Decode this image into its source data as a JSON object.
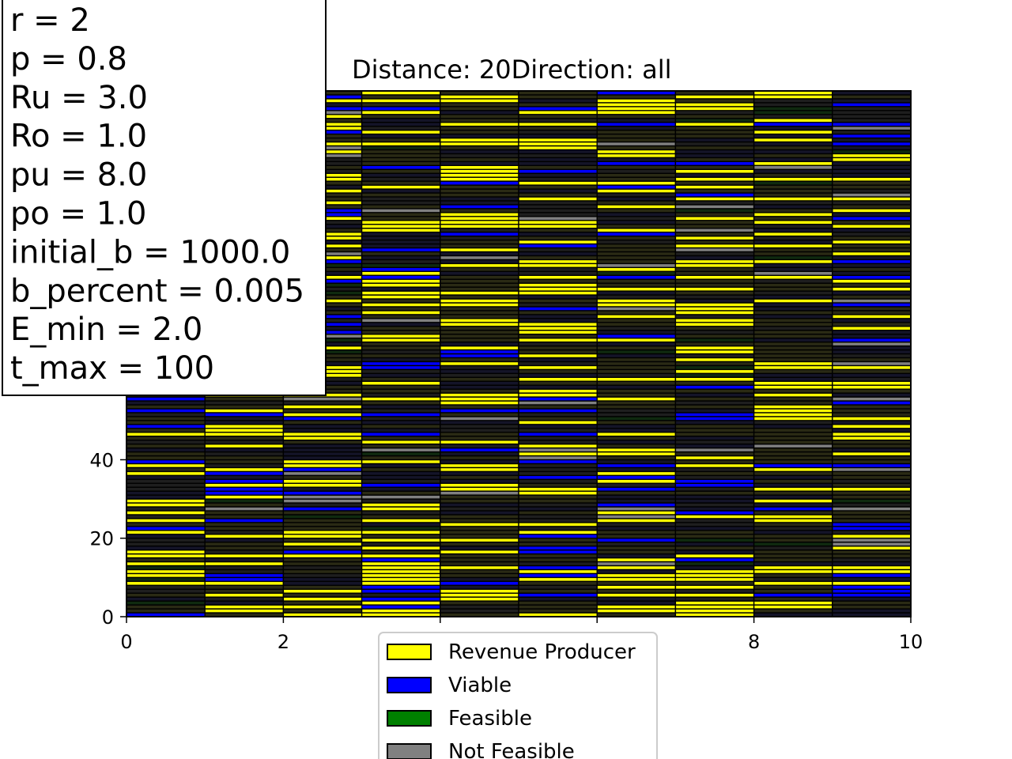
{
  "chart_data": {
    "type": "bar",
    "title": "Distance: 20Direction: all",
    "xlabel": "",
    "ylabel": "",
    "xlim": [
      0,
      10
    ],
    "ylim": [
      0,
      134
    ],
    "x_ticks": [
      "0",
      "2",
      "4",
      "6",
      "8",
      "10"
    ],
    "y_ticks": [
      "0",
      "20",
      "40"
    ],
    "grid": false,
    "columns": 10,
    "rows_per_column": 134,
    "legend_position": "lower center",
    "legend": [
      {
        "label": "Revenue Producer",
        "color": "#ffff00"
      },
      {
        "label": "Viable",
        "color": "#0000ff"
      },
      {
        "label": "Feasible",
        "color": "#008000"
      },
      {
        "label": "Not Feasible",
        "color": "#808080"
      }
    ],
    "parameters": [
      "r = 2",
      "p = 0.8",
      "Ru = 3.0",
      "Ro = 1.0",
      "pu = 8.0",
      "po = 1.0",
      "initial_b = 1000.0",
      "b_percent = 0.005",
      "E_min = 2.0",
      "t_max = 100"
    ]
  },
  "colors": {
    "revenue_producer": "#ffff00",
    "viable": "#0000ff",
    "feasible": "#008000",
    "not_feasible": "#808080",
    "edge": "#000000"
  }
}
